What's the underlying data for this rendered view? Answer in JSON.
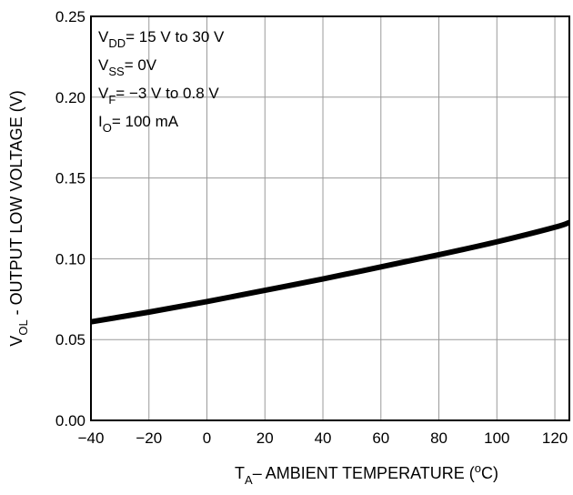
{
  "chart_data": {
    "type": "line",
    "title": "",
    "xlabel": {
      "main": "T",
      "sub": "A",
      "rest": "– AMBIENT TEMPERATURE (",
      "sup": "o",
      "end": "C)"
    },
    "ylabel": {
      "main": "V",
      "sub": "OL",
      "rest": " - OUTPUT LOW VOLTAGE (V)"
    },
    "xlim": [
      -40,
      125
    ],
    "ylim": [
      0,
      0.25
    ],
    "x_ticks": [
      -40,
      -20,
      0,
      20,
      40,
      60,
      80,
      100,
      120
    ],
    "x_tick_labels": [
      "−40",
      "−20",
      "0",
      "20",
      "40",
      "60",
      "80",
      "100",
      "120"
    ],
    "y_ticks": [
      0,
      0.05,
      0.1,
      0.15,
      0.2,
      0.25
    ],
    "y_tick_labels": [
      "0.00",
      "0.05",
      "0.10",
      "0.15",
      "0.20",
      "0.25"
    ],
    "grid": true,
    "legend": "none",
    "series": [
      {
        "x": [
          -40,
          -20,
          0,
          20,
          40,
          60,
          80,
          100,
          120,
          125
        ],
        "y": [
          0.061,
          0.067,
          0.0735,
          0.0805,
          0.0875,
          0.095,
          0.1025,
          0.1105,
          0.1195,
          0.1225
        ],
        "color": "#000000"
      }
    ],
    "annotations": [
      {
        "main": "V",
        "sub": "DD",
        "rest": "= 15 V to 30 V"
      },
      {
        "main": "V",
        "sub": "SS",
        "rest": "= 0V"
      },
      {
        "main": "V",
        "sub": "F",
        "rest": "= −3 V to 0.8 V"
      },
      {
        "main": "I",
        "sub": "O",
        "rest": "= 100 mA"
      }
    ]
  }
}
